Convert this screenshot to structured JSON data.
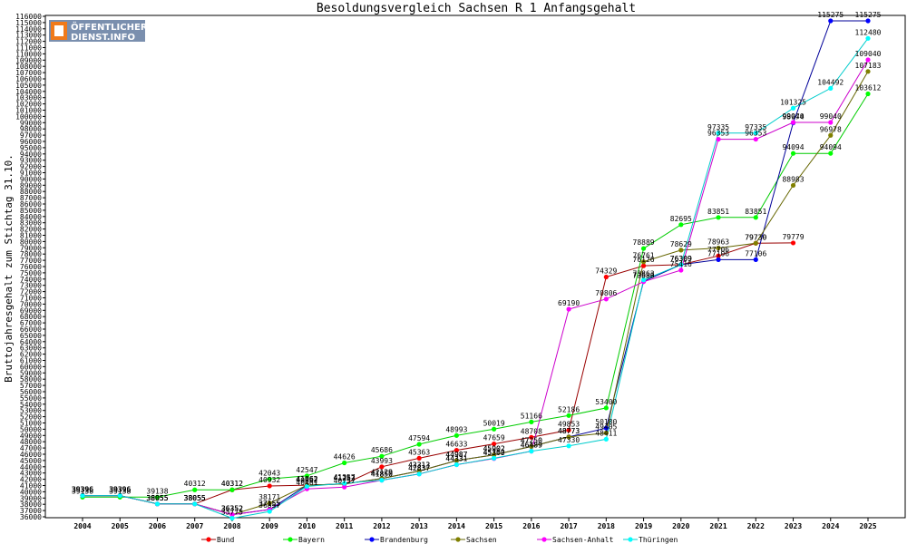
{
  "chart_data": {
    "type": "line",
    "title": "Besoldungsvergleich Sachsen R 1 Anfangsgehalt",
    "ylabel": "Bruttojahresgehalt zum Stichtag 31.10.",
    "xlabel": "",
    "ylim": [
      36000,
      116000
    ],
    "ystep": 1000,
    "grid": false,
    "legend_position": "bottom",
    "categories": [
      "2004",
      "2005",
      "2006",
      "2007",
      "2008",
      "2009",
      "2010",
      "2011",
      "2012",
      "2013",
      "2014",
      "2015",
      "2016",
      "2017",
      "2018",
      "2019",
      "2020",
      "2021",
      "2022",
      "2023",
      "2024",
      "2025"
    ],
    "series": [
      {
        "name": "Bund",
        "color": "#ff0000",
        "line": "#990000",
        "values": [
          39396,
          39396,
          38055,
          38055,
          40312,
          40932,
          41062,
          41252,
          43993,
          45363,
          46633,
          47659,
          48708,
          49853,
          74329,
          76126,
          76309,
          77706,
          79730,
          79779,
          null,
          null
        ]
      },
      {
        "name": "Bayern",
        "color": "#00ff00",
        "line": "#00cc00",
        "values": [
          39138,
          39138,
          39138,
          40312,
          40312,
          42043,
          42547,
          44626,
          45686,
          47594,
          48993,
          50019,
          51166,
          52186,
          53400,
          78889,
          82695,
          83851,
          83851,
          94094,
          94094,
          103612
        ]
      },
      {
        "name": "Brandenburg",
        "color": "#0000ff",
        "line": "#000099",
        "values": [
          39396,
          39396,
          38055,
          38055,
          36352,
          37155,
          41062,
          41252,
          42129,
          43313,
          44987,
          45902,
          47250,
          48773,
          50180,
          73633,
          76309,
          77106,
          77106,
          98974,
          115275,
          115275
        ]
      },
      {
        "name": "Sachsen",
        "color": "#808000",
        "line": "#666600",
        "values": [
          39396,
          39396,
          38055,
          38055,
          36352,
          38171,
          41062,
          41252,
          42129,
          43313,
          44987,
          45902,
          47250,
          48773,
          49405,
          76761,
          78629,
          78963,
          79730,
          88983,
          96978,
          107183
        ]
      },
      {
        "name": "Sachsen-Anhalt",
        "color": "#ff00ff",
        "line": "#cc00cc",
        "values": [
          39396,
          39396,
          38055,
          38055,
          36352,
          37155,
          40461,
          40757,
          41850,
          42837,
          44331,
          45309,
          46489,
          69190,
          70806,
          73586,
          75416,
          96353,
          96353,
          99040,
          99040,
          109040
        ]
      },
      {
        "name": "Thüringen",
        "color": "#00ffff",
        "line": "#00cccc",
        "values": [
          39396,
          39396,
          38055,
          38055,
          35775,
          36857,
          40862,
          41357,
          41850,
          42837,
          44331,
          45362,
          46489,
          47330,
          48411,
          73863,
          76309,
          97335,
          97335,
          101325,
          104492,
          112480
        ]
      }
    ],
    "data_labels": [
      [
        39396,
        39396,
        38055,
        38055,
        40312,
        40932,
        41062,
        41252,
        43993,
        45363,
        46633,
        47659,
        48708,
        49853,
        74329,
        76126,
        76309,
        77706,
        79730,
        79779,
        null,
        null
      ],
      [
        39138,
        39138,
        39138,
        40312,
        40312,
        42043,
        42547,
        44626,
        45686,
        47594,
        48993,
        50019,
        51166,
        52186,
        53400,
        78889,
        82695,
        83851,
        83851,
        94094,
        94094,
        103612
      ],
      [
        39396,
        39396,
        38055,
        38055,
        36352,
        37155,
        41062,
        41252,
        42129,
        43313,
        44987,
        45902,
        47250,
        48773,
        50180,
        73633,
        76309,
        77106,
        77106,
        98974,
        115275,
        115275
      ],
      [
        39396,
        39396,
        38055,
        38055,
        36352,
        38171,
        41062,
        41252,
        42129,
        43313,
        44987,
        45902,
        47250,
        48773,
        49405,
        76761,
        78629,
        78963,
        79730,
        88983,
        96978,
        107183
      ],
      [
        39396,
        39396,
        38055,
        38055,
        36352,
        37155,
        40461,
        40757,
        41850,
        42837,
        44331,
        45309,
        46489,
        69190,
        70806,
        73586,
        75416,
        96353,
        96353,
        99040,
        99040,
        109040
      ],
      [
        39396,
        39396,
        38055,
        38055,
        35775,
        36857,
        40862,
        41357,
        41850,
        42837,
        44331,
        45362,
        46489,
        47330,
        48411,
        73863,
        76309,
        97335,
        97335,
        101325,
        104492,
        112480
      ]
    ]
  },
  "logo": {
    "line1": "ÖFFENTLICHER",
    "line2": "DIENST.INFO",
    "colors": {
      "bg": "#7a8fae",
      "accent": "#f07a1a"
    }
  }
}
